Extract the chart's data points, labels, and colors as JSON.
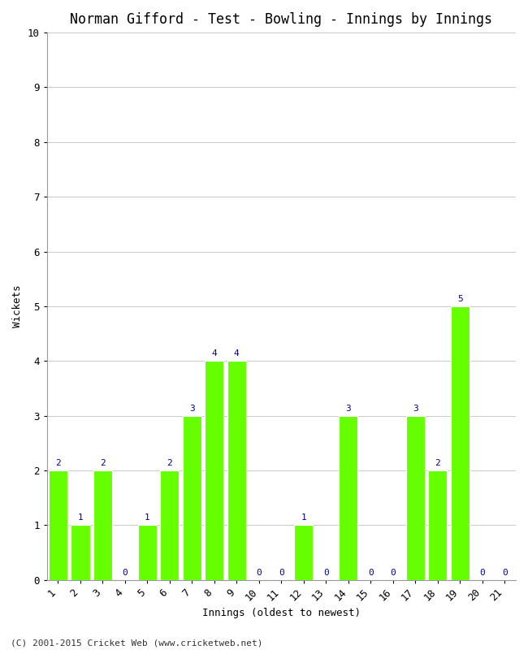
{
  "title": "Norman Gifford - Test - Bowling - Innings by Innings",
  "xlabel": "Innings (oldest to newest)",
  "ylabel": "Wickets",
  "categories": [
    1,
    2,
    3,
    4,
    5,
    6,
    7,
    8,
    9,
    10,
    11,
    12,
    13,
    14,
    15,
    16,
    17,
    18,
    19,
    20,
    21
  ],
  "values": [
    2,
    1,
    2,
    0,
    1,
    2,
    3,
    4,
    4,
    0,
    0,
    1,
    0,
    3,
    0,
    0,
    3,
    2,
    5,
    0,
    0
  ],
  "bar_color": "#66ff00",
  "label_color": "#000099",
  "ylim": [
    0,
    10
  ],
  "yticks": [
    0,
    1,
    2,
    3,
    4,
    5,
    6,
    7,
    8,
    9,
    10
  ],
  "background_color": "#ffffff",
  "grid_color": "#cccccc",
  "footer": "(C) 2001-2015 Cricket Web (www.cricketweb.net)",
  "title_fontsize": 12,
  "label_fontsize": 9,
  "tick_fontsize": 9,
  "footer_fontsize": 8,
  "value_label_fontsize": 8
}
